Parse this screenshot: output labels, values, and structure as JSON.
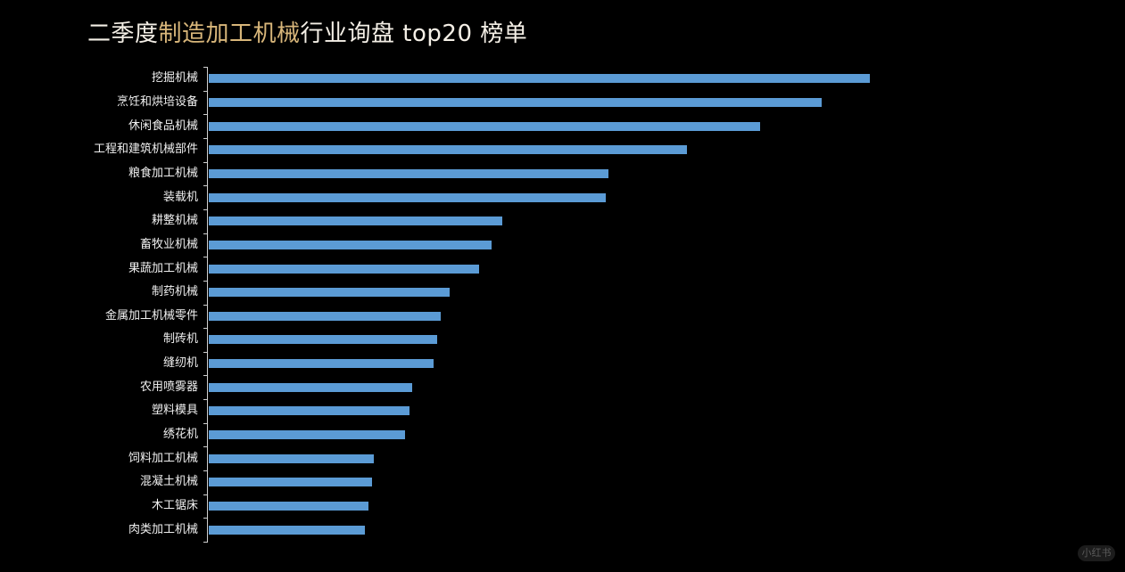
{
  "title": {
    "part1": "二季度",
    "part2": "制造加工机械",
    "part3": "行业询盘 top20 榜单",
    "colors": {
      "white": "#f4efe6",
      "gold": "#d8b67a"
    }
  },
  "watermark": "小红书",
  "chart_data": {
    "type": "bar",
    "orientation": "horizontal",
    "title": "二季度制造加工机械行业询盘 top20 榜单",
    "xlabel": "",
    "ylabel": "",
    "grid": false,
    "legend": null,
    "bar_color": "#5b9bd5",
    "value_unit": "relative bar length (px from axis, no numeric axis shown)",
    "categories": [
      "挖掘机械",
      "烹饪和烘培设备",
      "休闲食品机械",
      "工程和建筑机械部件",
      "粮食加工机械",
      "装载机",
      "耕整机械",
      "畜牧业机械",
      "果蔬加工机械",
      "制药机械",
      "金属加工机械零件",
      "制砖机",
      "缝纫机",
      "农用喷雾器",
      "塑料模具",
      "绣花机",
      "饲料加工机械",
      "混凝土机械",
      "木工锯床",
      "肉类加工机械"
    ],
    "values": [
      741,
      687,
      618,
      536,
      448,
      445,
      329,
      317,
      303,
      270,
      260,
      256,
      252,
      228,
      225,
      220,
      185,
      183,
      179,
      175
    ]
  }
}
